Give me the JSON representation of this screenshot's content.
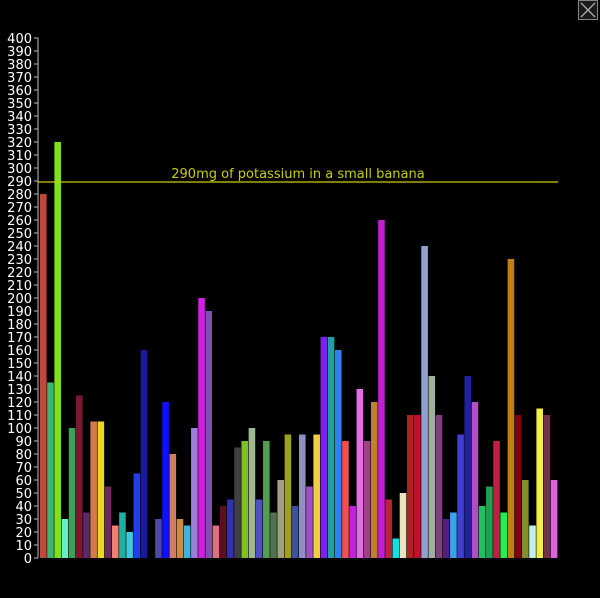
{
  "chart_data": {
    "type": "bar",
    "title": "",
    "xlabel": "",
    "ylabel": "",
    "ylim": [
      0,
      400
    ],
    "y_tick_step": 10,
    "grid": false,
    "reference_line": {
      "value": 290,
      "label": "290mg of potassium in a small banana",
      "color": "#cccc00"
    },
    "values": [
      280,
      135,
      320,
      30,
      100,
      125,
      35,
      105,
      105,
      55,
      25,
      35,
      20,
      65,
      160,
      0,
      30,
      120,
      80,
      30,
      25,
      100,
      200,
      190,
      25,
      40,
      45,
      85,
      90,
      100,
      45,
      90,
      35,
      60,
      95,
      40,
      95,
      55,
      95,
      170,
      170,
      160,
      90,
      40,
      130,
      90,
      120,
      260,
      45,
      15,
      50,
      110,
      110,
      240,
      140,
      110,
      30,
      35,
      95,
      140,
      120,
      40,
      55,
      90,
      35,
      230,
      110,
      60,
      25,
      115,
      110,
      60
    ],
    "colors": [
      "#c0483a",
      "#3cb371",
      "#7fe020",
      "#66f0c8",
      "#3aa35a",
      "#7a1830",
      "#5a2a6a",
      "#d27a4a",
      "#e8d820",
      "#6a2a5a",
      "#f08070",
      "#20b0a0",
      "#40c8e0",
      "#2040f0",
      "#1a1a9a",
      "#3a3a3a",
      "#4a4aa0",
      "#1010ff",
      "#d08060",
      "#d08a40",
      "#40b0e0",
      "#9a80d8",
      "#d020e0",
      "#8050b0",
      "#e07080",
      "#5a1020",
      "#3030b0",
      "#404040",
      "#80c020",
      "#a0b890",
      "#5050c0",
      "#50a050",
      "#507050",
      "#a0a080",
      "#a0a020",
      "#4050a0",
      "#9090c0",
      "#a050c0",
      "#f0d040",
      "#8020f0",
      "#20a0a0",
      "#3080f0",
      "#f05050",
      "#c020e0",
      "#e070e0",
      "#a04080",
      "#c08030",
      "#c020d0",
      "#c02040",
      "#10e0e0",
      "#f0e0c0",
      "#b02020",
      "#c01030",
      "#90a0d0",
      "#a0b0a0",
      "#804080",
      "#502080",
      "#40a0f0",
      "#4040d0",
      "#2020a0",
      "#b050c0",
      "#20c060",
      "#20a050",
      "#c02040",
      "#20f050",
      "#c08010",
      "#800010",
      "#809030",
      "#c0f0f0",
      "#f0f040",
      "#703050",
      "#e060e0"
    ]
  }
}
